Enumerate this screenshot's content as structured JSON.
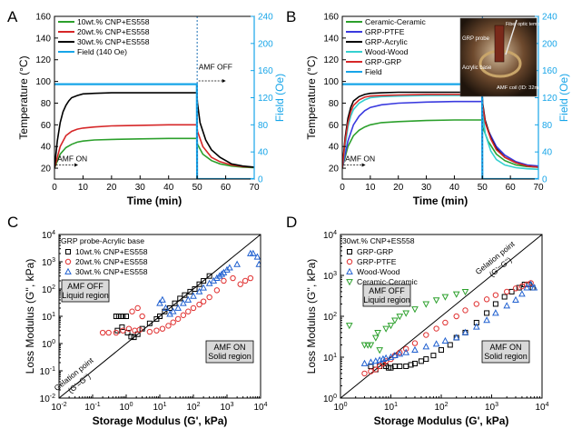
{
  "chart_data": [
    {
      "panel": "A",
      "type": "line",
      "xlabel": "Time (min)",
      "ylabel": "Temperature (°C)",
      "y2label": "Field (Oe)",
      "xlim": [
        0,
        70
      ],
      "ylim": [
        10,
        160
      ],
      "y2lim": [
        0,
        240
      ],
      "xticks": [
        0,
        10,
        20,
        30,
        40,
        50,
        60,
        70
      ],
      "yticks": [
        20,
        40,
        60,
        80,
        100,
        120,
        140,
        160
      ],
      "y2ticks": [
        0,
        40,
        80,
        120,
        160,
        200,
        240
      ],
      "legend_position": "top-left",
      "series": [
        {
          "name": "10wt.% CNP+ES558",
          "color": "#2ca02c",
          "x": [
            0,
            2,
            4,
            6,
            8,
            10,
            14,
            20,
            30,
            40,
            49.9,
            50.1,
            52,
            55,
            58,
            62,
            66,
            70
          ],
          "y": [
            20,
            33,
            39,
            42,
            44,
            45,
            46,
            46.5,
            47,
            47.5,
            47.5,
            42,
            33,
            27,
            24,
            22,
            21,
            20.5
          ]
        },
        {
          "name": "20wt.% CNP+ES558",
          "color": "#d62728",
          "x": [
            0,
            2,
            4,
            6,
            8,
            10,
            14,
            20,
            30,
            40,
            49.9,
            50.1,
            52,
            55,
            58,
            62,
            66,
            70
          ],
          "y": [
            20,
            40,
            50,
            54,
            56,
            57,
            58,
            59,
            59.5,
            60,
            60,
            54,
            40,
            30,
            26,
            23,
            21.5,
            21
          ]
        },
        {
          "name": "30wt.% CNP+ES558",
          "color": "#000000",
          "x": [
            0,
            1,
            2,
            3,
            4,
            5,
            6,
            8,
            10,
            14,
            20,
            30,
            40,
            49.9,
            50.1,
            51,
            53,
            55,
            58,
            62,
            66,
            70
          ],
          "y": [
            20,
            45,
            62,
            72,
            78,
            82,
            85,
            87,
            88.5,
            89,
            89.5,
            89.5,
            89.5,
            89.5,
            80,
            62,
            46,
            37,
            30,
            24,
            22,
            21
          ]
        },
        {
          "name": "Field (140 Oe)",
          "color": "#17a5e8",
          "axis": "right",
          "x": [
            0,
            49.9,
            50,
            70
          ],
          "y": [
            140,
            140,
            0,
            0
          ]
        }
      ],
      "annotations": [
        "AMF ON",
        "AMF OFF"
      ]
    },
    {
      "panel": "B",
      "type": "line",
      "xlabel": "Time (min)",
      "ylabel": "Temperature (°C)",
      "y2label": "Field (Oe)",
      "xlim": [
        0,
        70
      ],
      "ylim": [
        10,
        160
      ],
      "y2lim": [
        0,
        240
      ],
      "xticks": [
        0,
        10,
        20,
        30,
        40,
        50,
        60,
        70
      ],
      "yticks": [
        20,
        40,
        60,
        80,
        100,
        120,
        140,
        160
      ],
      "y2ticks": [
        0,
        40,
        80,
        120,
        160,
        200,
        240
      ],
      "legend_position": "top-left",
      "series": [
        {
          "name": "Ceramic-Ceramic",
          "color": "#2ca02c",
          "x": [
            0,
            2,
            4,
            6,
            8,
            10,
            14,
            20,
            30,
            40,
            49.9,
            50.1,
            52,
            55,
            58,
            62,
            66,
            70
          ],
          "y": [
            20,
            40,
            50,
            55,
            58,
            60,
            62,
            63,
            64,
            64.5,
            64.5,
            58,
            45,
            33,
            27,
            23,
            21.5,
            21
          ]
        },
        {
          "name": "GRP-PTFE",
          "color": "#3a3adf",
          "x": [
            0,
            2,
            4,
            6,
            8,
            10,
            14,
            20,
            30,
            40,
            49.9,
            50.1,
            52,
            55,
            58,
            62,
            66,
            70
          ],
          "y": [
            20,
            45,
            60,
            68,
            73,
            76,
            78.5,
            80,
            81,
            81.5,
            81.5,
            72,
            55,
            40,
            32,
            26,
            23,
            22
          ]
        },
        {
          "name": "GRP-Acrylic",
          "color": "#000000",
          "x": [
            0,
            1,
            2,
            3,
            4,
            6,
            8,
            10,
            14,
            20,
            30,
            40,
            49.9,
            50.1,
            51,
            53,
            55,
            58,
            62,
            66,
            70
          ],
          "y": [
            20,
            48,
            66,
            76,
            82,
            86,
            88,
            89,
            89.5,
            90,
            90,
            90,
            90,
            80,
            64,
            48,
            38,
            30,
            25,
            22,
            21
          ]
        },
        {
          "name": "Wood-Wood",
          "color": "#35d0d0",
          "x": [
            0,
            1,
            2,
            3,
            4,
            6,
            8,
            10,
            14,
            20,
            30,
            40,
            49.9,
            50.1,
            51,
            53,
            55,
            58,
            62,
            66,
            70
          ],
          "y": [
            20,
            40,
            58,
            68,
            74,
            80,
            83,
            85,
            86,
            86.5,
            87,
            87,
            87,
            72,
            52,
            36,
            28,
            23,
            20.5,
            19.5,
            19
          ]
        },
        {
          "name": "GRP-GRP",
          "color": "#d62728",
          "x": [
            0,
            1,
            2,
            3,
            4,
            6,
            8,
            10,
            14,
            20,
            30,
            40,
            49.9,
            50.1,
            51,
            53,
            55,
            58,
            62,
            66,
            70
          ],
          "y": [
            20,
            45,
            62,
            72,
            78,
            83,
            85.5,
            86.5,
            87,
            87.5,
            88,
            88,
            88,
            78,
            62,
            47,
            37,
            30,
            25,
            22,
            21
          ]
        },
        {
          "name": "Field",
          "color": "#17a5e8",
          "axis": "right",
          "x": [
            0,
            49.9,
            50,
            70
          ],
          "y": [
            140,
            140,
            0,
            0
          ]
        }
      ],
      "annotations": [
        "AMF ON",
        "AMF OFF"
      ],
      "inset_labels": [
        "GRP probe",
        "Acrylic base",
        "Fiber optic temperature sensor",
        "AMF coil (ID: 32mm)"
      ]
    },
    {
      "panel": "C",
      "type": "scatter",
      "xlabel": "Storage Modulus (G', kPa)",
      "ylabel": "Loss Modulus (G'', kPa)",
      "xscale": "log",
      "yscale": "log",
      "xlim": [
        0.01,
        10000
      ],
      "ylim": [
        0.01,
        10000
      ],
      "legend_title": "GRP probe-Acrylic base",
      "legend_position": "top-left",
      "series": [
        {
          "name": "10wt.% CNP+ES558",
          "color": "#000000",
          "marker": "square",
          "x": [
            0.5,
            0.6,
            0.7,
            0.8,
            1.0,
            0.55,
            0.75,
            1.1,
            1.4,
            1.7,
            2.2,
            3,
            5,
            8,
            10,
            14,
            20,
            28,
            40,
            55,
            80,
            110,
            150,
            200,
            300
          ],
          "y": [
            10,
            10,
            10,
            10,
            10,
            3,
            4,
            2.5,
            1.8,
            1.7,
            2.2,
            3.5,
            5.5,
            8,
            10,
            15,
            20,
            30,
            45,
            60,
            80,
            100,
            150,
            200,
            300
          ]
        },
        {
          "name": "20wt.% CNP+ES558",
          "color": "#e03030",
          "marker": "circle",
          "x": [
            0.2,
            0.3,
            0.5,
            0.8,
            1.2,
            1.8,
            2.5,
            1.5,
            2.2,
            3,
            5,
            8,
            12,
            18,
            25,
            35,
            50,
            70,
            100,
            150,
            200,
            300,
            500,
            800,
            1500,
            2500,
            3500,
            5000
          ],
          "y": [
            2.5,
            2.5,
            2.5,
            3,
            3.5,
            3,
            3.2,
            15,
            20,
            10,
            2.7,
            3,
            3.5,
            4.5,
            6,
            8,
            11,
            15,
            20,
            27,
            35,
            50,
            90,
            200,
            250,
            150,
            200,
            250
          ]
        },
        {
          "name": "30wt.% CNP+ES558",
          "color": "#2060d0",
          "marker": "triangle",
          "x": [
            10,
            12,
            15,
            20,
            25,
            35,
            50,
            70,
            100,
            150,
            200,
            300,
            400,
            500,
            600,
            700,
            800,
            1000,
            1200,
            2000,
            5000,
            6000,
            8000,
            9000
          ],
          "y": [
            30,
            40,
            20,
            12,
            15,
            20,
            30,
            40,
            55,
            80,
            110,
            160,
            200,
            250,
            300,
            350,
            400,
            500,
            600,
            800,
            2000,
            2000,
            1500,
            800
          ]
        }
      ],
      "text_boxes": [
        "AMF OFF",
        "Liquid region",
        "AMF ON",
        "Solid region"
      ],
      "annotations": [
        "Gelation point",
        "(G'=G'')"
      ]
    },
    {
      "panel": "D",
      "type": "scatter",
      "xlabel": "Storage Modulus (G', kPa)",
      "ylabel": "Loss Modulus (G'', kPa)",
      "xscale": "log",
      "yscale": "log",
      "xlim": [
        1,
        10000
      ],
      "ylim": [
        1,
        10000
      ],
      "legend_title": "30wt.% CNP+ES558",
      "legend_position": "top-left",
      "series": [
        {
          "name": "GRP-GRP",
          "color": "#000000",
          "marker": "square",
          "x": [
            4,
            5,
            6,
            7,
            8,
            9,
            10,
            12,
            15,
            20,
            25,
            30,
            40,
            50,
            70,
            100,
            150,
            200,
            300,
            500,
            800,
            1200,
            1800,
            2500,
            3500,
            4500,
            5500,
            6500
          ],
          "y": [
            6,
            5,
            6,
            7,
            6,
            5.5,
            5.5,
            6,
            6,
            6,
            6.5,
            7,
            8,
            9,
            11,
            15,
            20,
            30,
            40,
            70,
            120,
            200,
            300,
            400,
            500,
            600,
            600,
            500
          ]
        },
        {
          "name": "GRP-PTFE",
          "color": "#e03030",
          "marker": "circle",
          "x": [
            3,
            4,
            5,
            6,
            7,
            8,
            10,
            12,
            15,
            20,
            30,
            50,
            80,
            120,
            200,
            300,
            500,
            800,
            1200,
            2000,
            3000,
            4000,
            5000,
            6000
          ],
          "y": [
            4,
            4.5,
            5,
            6,
            7,
            8,
            9,
            11,
            13,
            16,
            22,
            35,
            50,
            70,
            100,
            140,
            200,
            260,
            330,
            400,
            480,
            540,
            600,
            650
          ]
        },
        {
          "name": "Wood-Wood",
          "color": "#2060d0",
          "marker": "triangle",
          "x": [
            3,
            4,
            5,
            6,
            7,
            8,
            10,
            12,
            15,
            20,
            30,
            50,
            80,
            120,
            200,
            300,
            500,
            800,
            1200,
            2000,
            3000,
            4000,
            5000,
            6000,
            7000
          ],
          "y": [
            7,
            7.5,
            8,
            8.5,
            9,
            9.5,
            10,
            11,
            12,
            13,
            15,
            18,
            21,
            25,
            30,
            40,
            55,
            80,
            120,
            180,
            250,
            350,
            500,
            600,
            500
          ]
        },
        {
          "name": "Ceramic-Ceramic",
          "color": "#2ca02c",
          "marker": "triangle-down",
          "x": [
            1.5,
            3,
            3.5,
            4,
            5,
            5.5,
            6,
            8,
            10,
            12,
            15,
            20,
            30,
            50,
            80,
            120,
            200,
            300
          ],
          "y": [
            60,
            20,
            20,
            20,
            30,
            40,
            15,
            50,
            60,
            80,
            100,
            120,
            150,
            200,
            250,
            300,
            350,
            400
          ]
        }
      ],
      "text_boxes": [
        "AMF OFF",
        "Liquid region",
        "AMF ON",
        "Solid region"
      ],
      "annotations": [
        "Gelation point",
        "(G'=G'')"
      ]
    }
  ]
}
